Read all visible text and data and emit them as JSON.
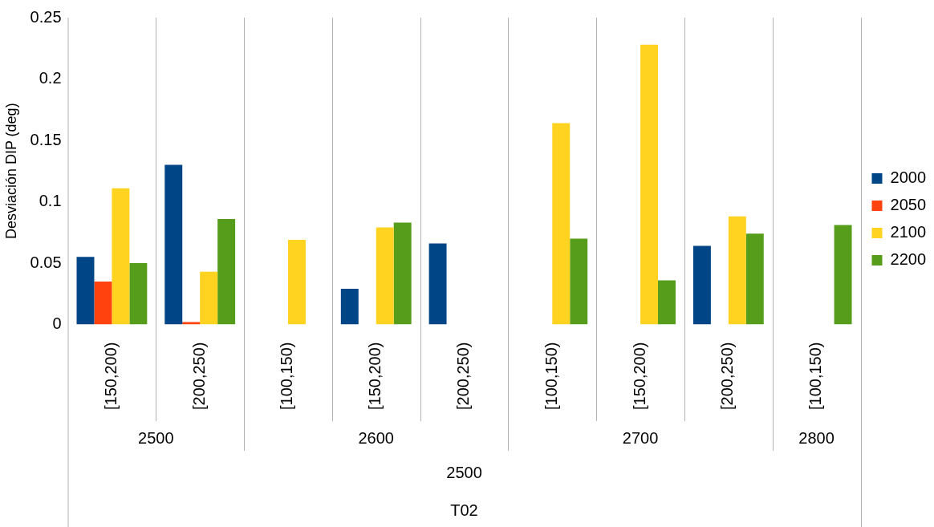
{
  "chart_data": {
    "type": "bar",
    "ylabel": "Desviación DIP (deg)",
    "categories": [
      "[150,200)",
      "[200,250)",
      "[100,150)",
      "[150,200)",
      "[200,250)",
      "[100,150)",
      "[150,200)",
      "[200,250)",
      "[100,150)"
    ],
    "series": [
      {
        "name": "2000",
        "color": "#004586",
        "values": [
          0.055,
          0.13,
          null,
          0.029,
          0.066,
          null,
          null,
          0.064,
          null
        ]
      },
      {
        "name": "2050",
        "color": "#ff420e",
        "values": [
          0.035,
          0.002,
          null,
          null,
          null,
          null,
          null,
          null,
          null
        ]
      },
      {
        "name": "2100",
        "color": "#ffd320",
        "values": [
          0.111,
          0.043,
          0.069,
          0.079,
          null,
          0.164,
          0.228,
          0.088,
          null
        ]
      },
      {
        "name": "2200",
        "color": "#579d1c",
        "values": [
          0.05,
          0.086,
          null,
          0.083,
          null,
          0.07,
          0.036,
          0.074,
          0.081
        ]
      }
    ],
    "ylim": [
      0,
      0.25
    ],
    "yticks": [
      0,
      0.05,
      0.1,
      0.15,
      0.2,
      0.25
    ],
    "grid": "x",
    "legend": "right",
    "annotations": [
      "2500",
      "2600",
      "2700",
      "2800",
      "2500",
      "T02"
    ]
  }
}
